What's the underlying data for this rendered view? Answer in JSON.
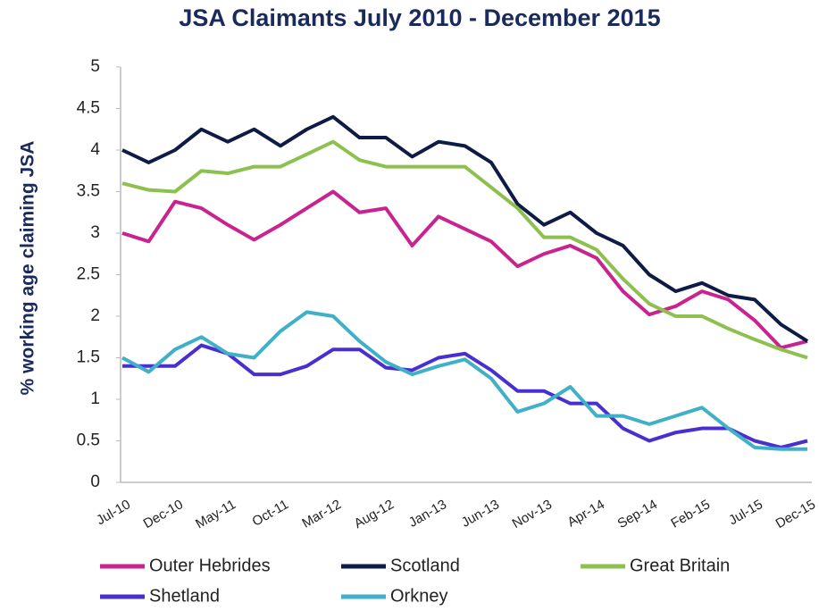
{
  "chart_data": {
    "type": "line",
    "title": "JSA Claimants July 2010 - December 2015",
    "y_label": "% working age claiming JSA",
    "categories": [
      "Jul-10",
      null,
      "Dec-10",
      null,
      "May-11",
      null,
      "Oct-11",
      null,
      "Mar-12",
      null,
      "Aug-12",
      null,
      "Jan-13",
      null,
      "Jun-13",
      null,
      "Nov-13",
      null,
      "Apr-14",
      null,
      "Sep-14",
      null,
      "Feb-15",
      null,
      "Jul-15",
      null,
      "Dec-15"
    ],
    "ylim": [
      0,
      5
    ],
    "yticks": [
      0,
      0.5,
      1,
      1.5,
      2,
      2.5,
      3,
      3.5,
      4,
      4.5,
      5
    ],
    "grid": false,
    "legend": "bottom",
    "series": [
      {
        "name": "Outer Hebrides",
        "color": "#c8238f",
        "values": [
          3.0,
          2.9,
          3.38,
          3.3,
          3.1,
          2.92,
          3.1,
          3.3,
          3.5,
          3.25,
          3.3,
          2.85,
          3.2,
          3.05,
          2.9,
          2.6,
          2.75,
          2.85,
          2.7,
          2.3,
          2.02,
          2.12,
          2.3,
          2.2,
          1.95,
          1.62,
          1.7
        ]
      },
      {
        "name": "Scotland",
        "color": "#0d1b45",
        "values": [
          4.0,
          3.85,
          4.0,
          4.25,
          4.1,
          4.25,
          4.05,
          4.25,
          4.4,
          4.15,
          4.15,
          3.92,
          4.1,
          4.05,
          3.85,
          3.35,
          3.1,
          3.25,
          3.0,
          2.85,
          2.5,
          2.3,
          2.4,
          2.25,
          2.2,
          1.9,
          1.7
        ]
      },
      {
        "name": "Great Britain",
        "color": "#8dc04f",
        "values": [
          3.6,
          3.52,
          3.5,
          3.75,
          3.72,
          3.8,
          3.8,
          3.95,
          4.1,
          3.88,
          3.8,
          3.8,
          3.8,
          3.8,
          3.55,
          3.3,
          2.95,
          2.95,
          2.8,
          2.45,
          2.15,
          2.0,
          2.0,
          1.85,
          1.72,
          1.6,
          1.5
        ]
      },
      {
        "name": "Shetland",
        "color": "#4a2fd0",
        "values": [
          1.4,
          1.4,
          1.4,
          1.65,
          1.55,
          1.3,
          1.3,
          1.4,
          1.6,
          1.6,
          1.38,
          1.35,
          1.5,
          1.55,
          1.35,
          1.1,
          1.1,
          0.95,
          0.95,
          0.65,
          0.5,
          0.6,
          0.65,
          0.65,
          0.5,
          0.42,
          0.5
        ]
      },
      {
        "name": "Orkney",
        "color": "#3fb0c8",
        "values": [
          1.5,
          1.33,
          1.6,
          1.75,
          1.55,
          1.5,
          1.82,
          2.05,
          2.0,
          1.7,
          1.45,
          1.3,
          1.4,
          1.48,
          1.25,
          0.85,
          0.95,
          1.15,
          0.8,
          0.8,
          0.7,
          0.8,
          0.9,
          0.65,
          0.42,
          0.4,
          0.4
        ]
      }
    ]
  }
}
